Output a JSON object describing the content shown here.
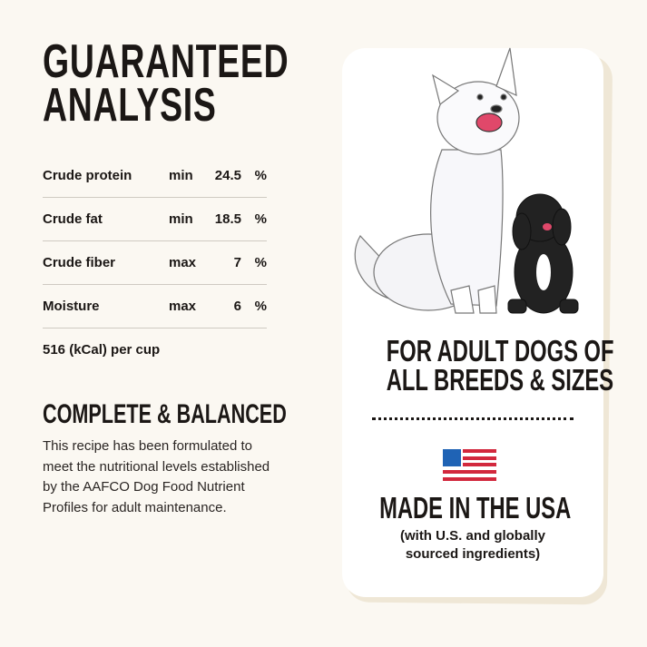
{
  "analysis": {
    "title_line1": "GUARANTEED",
    "title_line2": "ANALYSIS",
    "rows": [
      {
        "name": "Crude protein",
        "qualifier": "min",
        "value": "24.5",
        "unit": "%"
      },
      {
        "name": "Crude fat",
        "qualifier": "min",
        "value": "18.5",
        "unit": "%"
      },
      {
        "name": "Crude fiber",
        "qualifier": "max",
        "value": "7",
        "unit": "%"
      },
      {
        "name": "Moisture",
        "qualifier": "max",
        "value": "6",
        "unit": "%"
      }
    ],
    "calories": "516 (kCal) per cup"
  },
  "complete": {
    "title": "COMPLETE & BALANCED",
    "text": "This recipe has been formulated to meet the nutritional levels established by the AAFCO Dog Food Nutrient Profiles for adult maintenance."
  },
  "card": {
    "adult_line1": "FOR ADULT DOGS OF",
    "adult_line2": "ALL BREEDS & SIZES",
    "made_in": "MADE IN THE USA",
    "sub_line1": "(with U.S. and globally",
    "sub_line2": "sourced ingredients)",
    "flag_icon": "us-flag-icon",
    "colors": {
      "flag_blue": "#1f63b5",
      "flag_red": "#d2283d",
      "background": "#fbf8f2"
    }
  }
}
